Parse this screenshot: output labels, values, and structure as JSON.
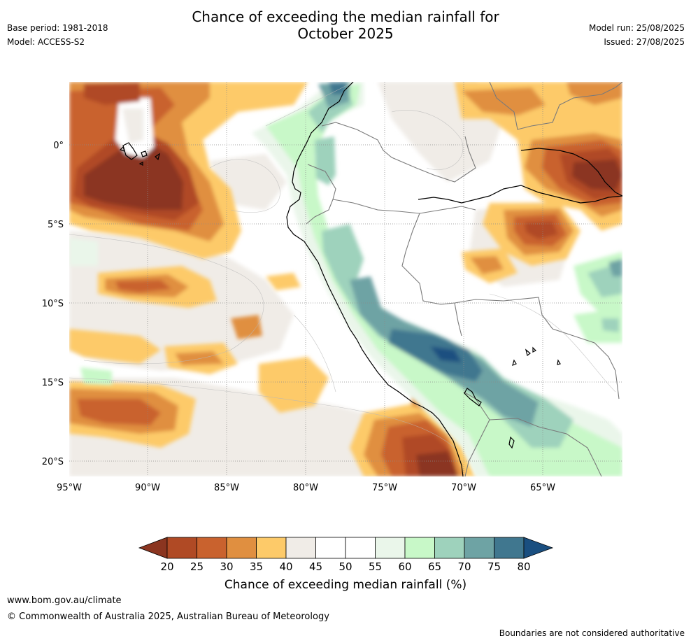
{
  "title_line1": "Chance of exceeding the median rainfall for",
  "title_line2": "October 2025",
  "meta_left": {
    "base_period": "Base period: 1981-2018",
    "model": "Model: ACCESS-S2"
  },
  "meta_right": {
    "model_run": "Model run: 25/08/2025",
    "issued": "Issued: 27/08/2025"
  },
  "map": {
    "lon_labels": [
      "95°W",
      "90°W",
      "85°W",
      "80°W",
      "75°W",
      "70°W",
      "65°W"
    ],
    "lat_labels": [
      "0°",
      "5°S",
      "10°S",
      "15°S",
      "20°S"
    ],
    "extent": {
      "lon": [
        -95,
        -60
      ],
      "lat": [
        -21,
        4
      ]
    }
  },
  "colorbar": {
    "title": "Chance of exceeding median rainfall (%)",
    "ticks": [
      "20",
      "25",
      "30",
      "35",
      "40",
      "45",
      "50",
      "55",
      "60",
      "65",
      "70",
      "75",
      "80"
    ],
    "colors": [
      "#8b3520",
      "#b04a25",
      "#c9622e",
      "#e08f40",
      "#fdca69",
      "#f0ece7",
      "#ffffff",
      "#ffffff",
      "#eaf6ea",
      "#c8f8c8",
      "#9ed2bc",
      "#6ea3a4",
      "#40778f",
      "#1a4f80"
    ],
    "under_color": "#8b3520",
    "over_color": "#1a4f80"
  },
  "footer": {
    "url": "www.bom.gov.au/climate",
    "copyright": "© Commonwealth of Australia 2025, Australian Bureau of Meteorology",
    "disclaimer": "Boundaries are not considered authoritative"
  }
}
